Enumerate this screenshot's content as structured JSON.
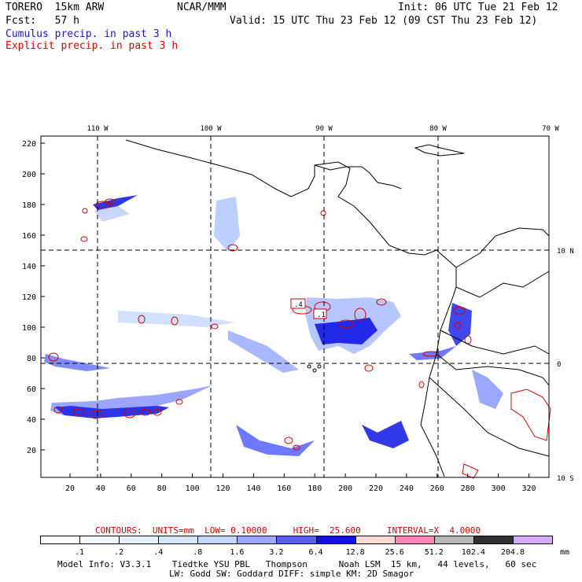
{
  "header": {
    "model_name": "TORERO  15km ARW",
    "org": "NCAR/MMM",
    "init": "Init: 06 UTC Tue 21 Feb 12",
    "fcst": "Fcst:   57 h",
    "valid": "Valid: 15 UTC Thu 23 Feb 12 (09 CST Thu 23 Feb 12)",
    "cumulus_label": "Cumulus precip. in past 3 h",
    "explicit_label": "Explicit precip. in past 3 h"
  },
  "map": {
    "top_lon_labels": [
      "110 W",
      "100 W",
      "90 W",
      "80 W",
      "70 W"
    ],
    "right_lat_labels": [
      "10 N",
      "0",
      "10 S"
    ],
    "left_ticks": [
      "220",
      "200",
      "180",
      "160",
      "140",
      "120",
      "100",
      "80",
      "60",
      "40",
      "20"
    ],
    "bottom_ticks": [
      "20",
      "40",
      "60",
      "80",
      "100",
      "120",
      "140",
      "160",
      "180",
      "200",
      "220",
      "240",
      "260",
      "280",
      "300",
      "320"
    ],
    "cell_labels": [
      ".4",
      ".1"
    ]
  },
  "contours": {
    "text": "CONTOURS:  UNITS=mm  LOW= 0.10000     HIGH=  25.600     INTERVAL=X  4.0000"
  },
  "colorbar": {
    "labels": [
      ".1",
      ".2",
      ".4",
      ".8",
      "1.6",
      "3.2",
      "6.4",
      "12.8",
      "25.6",
      "51.2",
      "102.4",
      "204.8"
    ],
    "unit": "mm",
    "colors": [
      "#ffffff",
      "#f2f6ff",
      "#e6f0ff",
      "#d6e8ff",
      "#c3d8ff",
      "#99aaff",
      "#5a60f0",
      "#1010e0",
      "#ffd8d8",
      "#ff88b8",
      "#b8b8b8",
      "#303030",
      "#d8a8ff"
    ]
  },
  "footer": {
    "line1": "Model Info: V3.3.1    Tiedtke YSU PBL   Thompson      Noah LSM  15 km,   44 levels,   60 sec",
    "line2": "LW: Godd SW: Goddard DIFF: simple KM: 2D Smagor"
  }
}
